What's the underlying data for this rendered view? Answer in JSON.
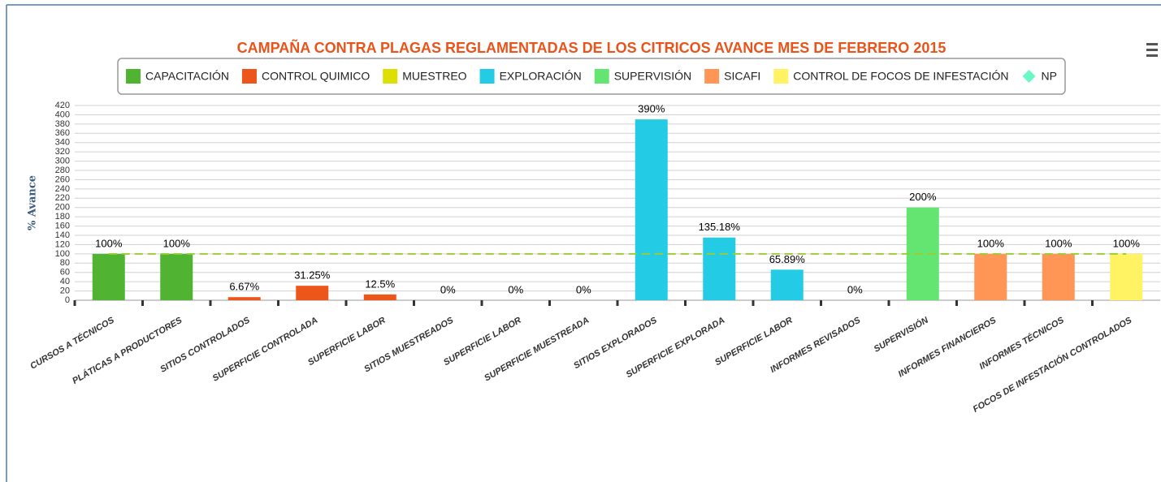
{
  "chart_data": {
    "type": "bar",
    "title": "CAMPAÑA CONTRA PLAGAS REGLAMENTADAS DE LOS CITRICOS AVANCE MES DE FEBRERO 2015",
    "y_axis_label": "% Avance",
    "categories": [
      "CURSOS A TÉCNICOS",
      "PLÁTICAS A PRODUCTORES",
      "SITIOS CONTROLADOS",
      "SUPERFICIE CONTROLADA",
      "SUPERFICIE LABOR",
      "SITIOS MUESTREADOS",
      "SUPERFICIE LABOR",
      "SUPERFICIE MUESTREADA",
      "SITIOS EXPLORADOS",
      "SUPERFICIE EXPLORADA",
      "SUPERFICIE LABOR",
      "INFORMES REVISADOS",
      "SUPERVISIÓN",
      "INFORMES FINANCIEROS",
      "INFORMES TÉCNICOS",
      "FOCOS DE INFESTACIÓN CONTROLADOS"
    ],
    "series": [
      {
        "name": "CAPACITACIÓN",
        "color": "#50b432",
        "values": [
          100,
          100,
          null,
          null,
          null,
          null,
          null,
          null,
          null,
          null,
          null,
          null,
          null,
          null,
          null,
          null
        ],
        "value_labels": [
          "100%",
          "100%",
          null,
          null,
          null,
          null,
          null,
          null,
          null,
          null,
          null,
          null,
          null,
          null,
          null,
          null
        ]
      },
      {
        "name": "CONTROL QUIMICO",
        "color": "#ed561b",
        "values": [
          null,
          null,
          6.67,
          31.25,
          12.5,
          null,
          null,
          null,
          null,
          null,
          null,
          null,
          null,
          null,
          null,
          null
        ],
        "value_labels": [
          null,
          null,
          "6.67%",
          "31.25%",
          "12.5%",
          null,
          null,
          null,
          null,
          null,
          null,
          null,
          null,
          null,
          null,
          null
        ]
      },
      {
        "name": "MUESTREO",
        "color": "#dddf00",
        "values": [
          null,
          null,
          null,
          null,
          null,
          0,
          0,
          0,
          null,
          null,
          null,
          null,
          null,
          null,
          null,
          null
        ],
        "value_labels": [
          null,
          null,
          null,
          null,
          null,
          "0%",
          "0%",
          "0%",
          null,
          null,
          null,
          null,
          null,
          null,
          null,
          null
        ]
      },
      {
        "name": "EXPLORACIÓN",
        "color": "#24cbe5",
        "values": [
          null,
          null,
          null,
          null,
          null,
          null,
          null,
          null,
          390,
          135.18,
          65.89,
          null,
          null,
          null,
          null,
          null
        ],
        "value_labels": [
          null,
          null,
          null,
          null,
          null,
          null,
          null,
          null,
          "390%",
          "135.18%",
          "65.89%",
          null,
          null,
          null,
          null,
          null
        ]
      },
      {
        "name": "SUPERVISIÓN",
        "color": "#64e572",
        "values": [
          null,
          null,
          null,
          null,
          null,
          null,
          null,
          null,
          null,
          null,
          null,
          0,
          200,
          null,
          null,
          null
        ],
        "value_labels": [
          null,
          null,
          null,
          null,
          null,
          null,
          null,
          null,
          null,
          null,
          null,
          "0%",
          "200%",
          null,
          null,
          null
        ]
      },
      {
        "name": "SICAFI",
        "color": "#ff9655",
        "values": [
          null,
          null,
          null,
          null,
          null,
          null,
          null,
          null,
          null,
          null,
          null,
          null,
          null,
          100,
          100,
          null
        ],
        "value_labels": [
          null,
          null,
          null,
          null,
          null,
          null,
          null,
          null,
          null,
          null,
          null,
          null,
          null,
          "100%",
          "100%",
          null
        ]
      },
      {
        "name": "CONTROL DE FOCOS DE INFESTACIÓN",
        "color": "#fff263",
        "values": [
          null,
          null,
          null,
          null,
          null,
          null,
          null,
          null,
          null,
          null,
          null,
          null,
          null,
          null,
          null,
          100
        ],
        "value_labels": [
          null,
          null,
          null,
          null,
          null,
          null,
          null,
          null,
          null,
          null,
          null,
          null,
          null,
          null,
          null,
          "100%"
        ]
      },
      {
        "name": "NP",
        "type": "line",
        "color": "#6af9c4",
        "line_color": "#9acd32",
        "values": [
          100,
          100,
          100,
          100,
          100,
          100,
          100,
          100,
          100,
          100,
          100,
          100,
          100,
          100,
          100,
          100
        ]
      }
    ],
    "ylim": [
      0,
      420
    ],
    "yticks": [
      0,
      20,
      40,
      60,
      80,
      100,
      120,
      140,
      160,
      180,
      200,
      220,
      240,
      260,
      280,
      300,
      320,
      340,
      360,
      380,
      400,
      420
    ],
    "grid": true
  }
}
